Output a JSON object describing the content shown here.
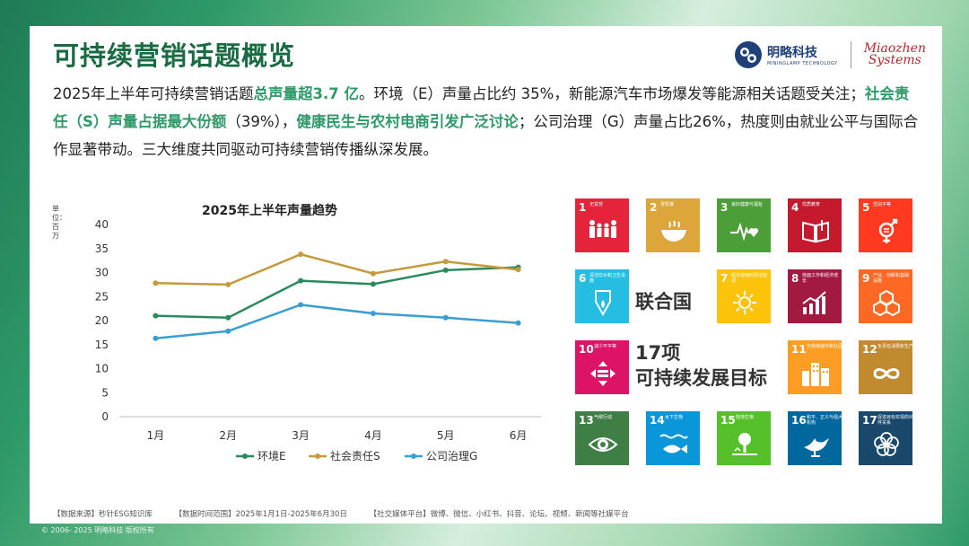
{
  "header": {
    "title": "可持续营销话题概览",
    "logo_cn": "明略科技",
    "logo_en": "MININGLAMP TECHNOLOGY",
    "logo_brand_1": "Miaozhen",
    "logo_brand_2": "Systems"
  },
  "summary": {
    "p1": "2025年上半年可持续营销话题",
    "h1": "总声量超3.7 亿",
    "p2": "。环境（E）声量占比约 35%，新能源汽车市场爆发等能源相关话题受关注；",
    "h2": "社会责任（S）声量占据最大份额",
    "p3": "（39%），",
    "h3": "健康民生与农村电商引发广泛讨论",
    "p4": "；公司治理（G）声量占比26%，热度则由就业公平与国际合作显著带动。三大维度共同驱动可持续营销传播纵深发展。"
  },
  "chart_data": {
    "type": "line",
    "title": "2025年上半年声量趋势",
    "ylabel": "单位：百万",
    "categories": [
      "1月",
      "2月",
      "3月",
      "4月",
      "5月",
      "6月"
    ],
    "ylim": [
      0,
      40
    ],
    "yticks": [
      0,
      5,
      10,
      15,
      20,
      25,
      30,
      35,
      40
    ],
    "grid": false,
    "legend": "bottom",
    "series": [
      {
        "name": "环境E",
        "color": "#2a8a5e",
        "values": [
          21,
          20.6,
          28.3,
          27.6,
          30.5,
          31.1
        ]
      },
      {
        "name": "社会责任S",
        "color": "#c49a3c",
        "values": [
          27.8,
          27.5,
          33.8,
          29.8,
          32.3,
          30.6
        ]
      },
      {
        "name": "公司治理G",
        "color": "#3a9ed1",
        "values": [
          16.3,
          17.8,
          23.3,
          21.5,
          20.6,
          19.5
        ]
      }
    ]
  },
  "sdg": {
    "un_label": "联合国",
    "goal_label_1": "17项",
    "goal_label_2": "可持续发展目标",
    "tiles": [
      {
        "num": "1",
        "label": "无贫穷",
        "color": "#e5243b",
        "icon": "family-icon"
      },
      {
        "num": "2",
        "label": "零饥饿",
        "color": "#dda63a",
        "icon": "bowl-icon"
      },
      {
        "num": "3",
        "label": "良好健康与福祉",
        "color": "#4c9f38",
        "icon": "heartbeat-icon"
      },
      {
        "num": "4",
        "label": "优质教育",
        "color": "#c5192d",
        "icon": "book-icon"
      },
      {
        "num": "5",
        "label": "性别平等",
        "color": "#ff3a21",
        "icon": "gender-icon"
      },
      {
        "num": "6",
        "label": "清洁饮水和卫生设施",
        "color": "#26bde2",
        "icon": "water-icon"
      },
      {
        "num": "7",
        "label": "经济适用的清洁能源",
        "color": "#fcc30b",
        "icon": "sun-icon"
      },
      {
        "num": "8",
        "label": "体面工作和经济增长",
        "color": "#a21942",
        "icon": "growth-icon"
      },
      {
        "num": "9",
        "label": "产业、创新和基础设施",
        "color": "#fd6925",
        "icon": "cubes-icon"
      },
      {
        "num": "10",
        "label": "减少不平等",
        "color": "#dd1367",
        "icon": "equality-icon"
      },
      {
        "num": "11",
        "label": "可持续城市和社区",
        "color": "#fd9d24",
        "icon": "city-icon"
      },
      {
        "num": "12",
        "label": "负责任消费和生产",
        "color": "#bf8b2e",
        "icon": "infinity-icon"
      },
      {
        "num": "13",
        "label": "气候行动",
        "color": "#3f7e44",
        "icon": "eye-icon"
      },
      {
        "num": "14",
        "label": "水下生物",
        "color": "#0a97d9",
        "icon": "fish-icon"
      },
      {
        "num": "15",
        "label": "陆地生物",
        "color": "#56c02b",
        "icon": "tree-icon"
      },
      {
        "num": "16",
        "label": "和平、正义与强大机构",
        "color": "#00689d",
        "icon": "dove-icon"
      },
      {
        "num": "17",
        "label": "促进目标实现的伙伴关系",
        "color": "#19486a",
        "icon": "flower-icon"
      }
    ]
  },
  "footer": {
    "source": "【数据来源】秒针ESG知识库",
    "range": "【数据时间范围】2025年1月1日-2025年6月30日",
    "platforms": "【社交媒体平台】微博、微信、小红书、抖音、论坛、视频、新闻等社媒平台",
    "copyright": "© 2006- 2025 明略科技 版权所有"
  }
}
